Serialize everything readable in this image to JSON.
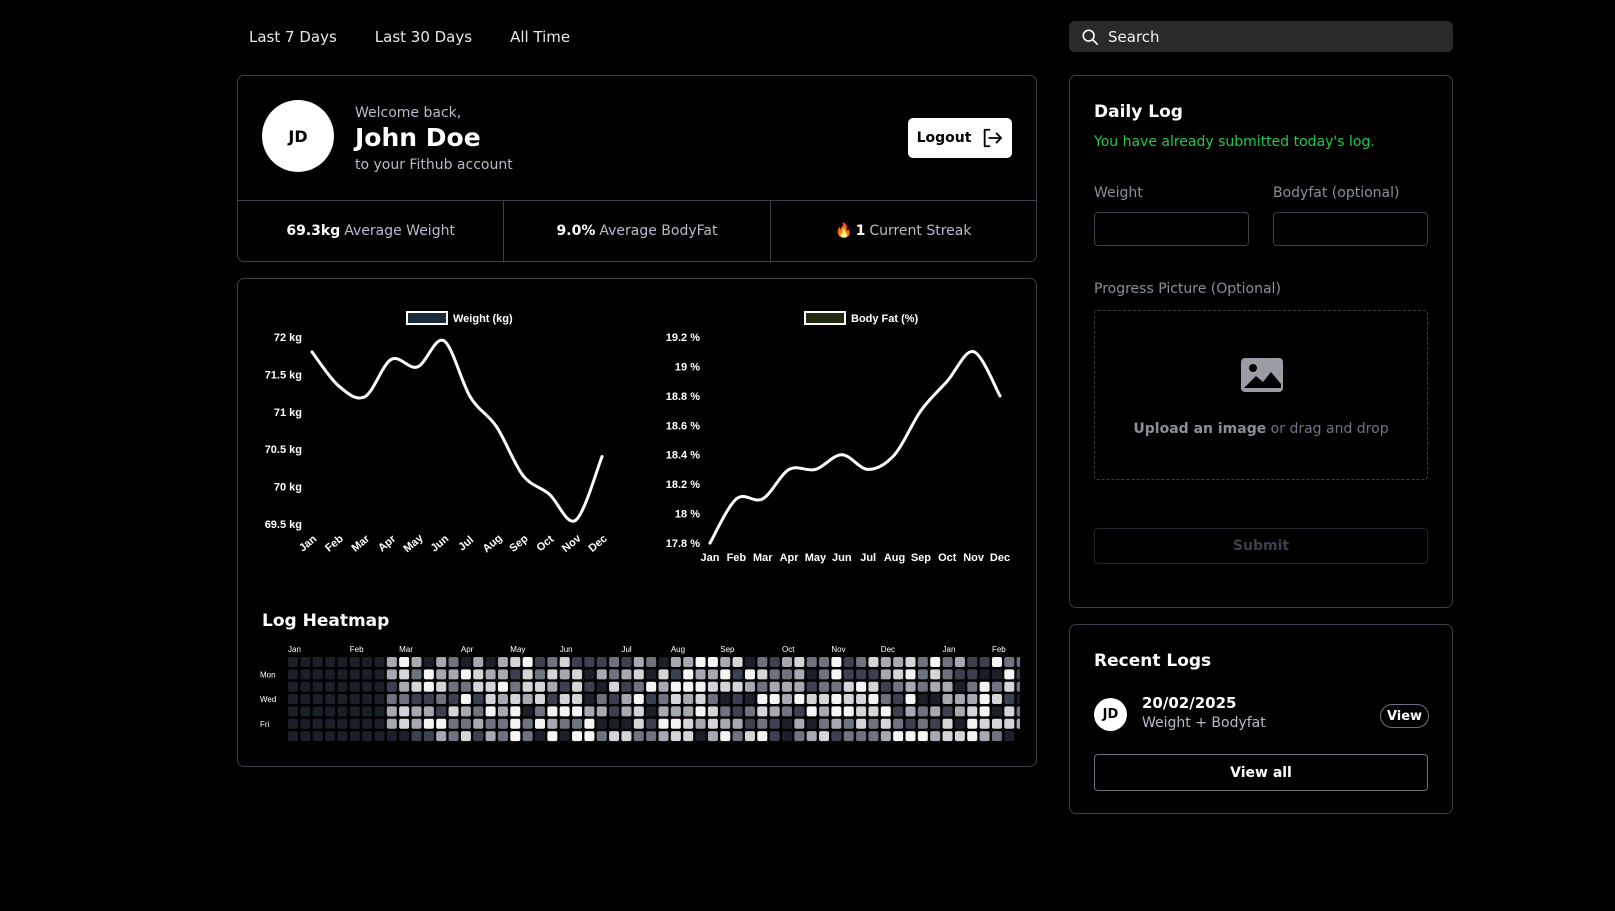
{
  "tabs": [
    "Last 7 Days",
    "Last 30 Days",
    "All Time"
  ],
  "search": {
    "placeholder": "Search"
  },
  "welcome": {
    "avatar_initials": "JD",
    "greeting": "Welcome back,",
    "name": "John Doe",
    "subtitle": "to your Fithub account",
    "logout_label": "Logout"
  },
  "stats": [
    {
      "value": "69.3kg",
      "label": "Average Weight"
    },
    {
      "value": "9.0%",
      "label": "Average BodyFat"
    },
    {
      "value": "1",
      "label": "Current Streak",
      "icon": "flame-icon"
    }
  ],
  "chart_data": [
    {
      "type": "line",
      "legend": "Weight (kg)",
      "categories": [
        "Jan",
        "Feb",
        "Mar",
        "Apr",
        "May",
        "Jun",
        "Jul",
        "Aug",
        "Sep",
        "Oct",
        "Nov",
        "Dec"
      ],
      "values": [
        71.8,
        71.35,
        71.2,
        71.7,
        71.6,
        71.95,
        71.2,
        70.8,
        70.15,
        69.9,
        69.55,
        70.4
      ],
      "yticks": [
        "72 kg",
        "71.5 kg",
        "71 kg",
        "70.5 kg",
        "70 kg",
        "69.5 kg"
      ],
      "ylim": [
        69.5,
        72
      ],
      "color": "#ffffff",
      "legend_color": "#1a2a3a"
    },
    {
      "type": "line",
      "legend": "Body Fat (%)",
      "categories": [
        "Jan",
        "Feb",
        "Mar",
        "Apr",
        "May",
        "Jun",
        "Jul",
        "Aug",
        "Sep",
        "Oct",
        "Nov",
        "Dec"
      ],
      "values": [
        17.8,
        18.1,
        18.1,
        18.3,
        18.3,
        18.4,
        18.3,
        18.4,
        18.7,
        18.9,
        19.1,
        18.8
      ],
      "yticks": [
        "19.2 %",
        "19 %",
        "18.8 %",
        "18.6 %",
        "18.4 %",
        "18.2 %",
        "18 %",
        "17.8 %"
      ],
      "ylim": [
        17.8,
        19.2
      ],
      "color": "#ffffff",
      "legend_color": "#1f2a10"
    }
  ],
  "heatmap": {
    "title": "Log Heatmap",
    "months": [
      "Jan",
      "Feb",
      "Mar",
      "Apr",
      "May",
      "Jun",
      "Jul",
      "Aug",
      "Sep",
      "Oct",
      "Nov",
      "Dec",
      "Jan",
      "Feb"
    ],
    "days": [
      "Mon",
      "Wed",
      "Fri"
    ],
    "weeks": 60,
    "empty_weeks": 8,
    "palette": [
      "#1a1f29",
      "#3b4150",
      "#6e7380",
      "#a6a9b1",
      "#d4d5d9",
      "#f5f5f5"
    ]
  },
  "daily_log": {
    "title": "Daily Log",
    "message": "You have already submitted today's log.",
    "weight_label": "Weight",
    "bodyfat_label": "Bodyfat (optional)",
    "picture_label": "Progress Picture (Optional)",
    "upload_strong": "Upload an image",
    "upload_rest": " or drag and drop",
    "submit_label": "Submit"
  },
  "recent_logs": {
    "title": "Recent Logs",
    "items": [
      {
        "initials": "JD",
        "date": "20/02/2025",
        "type": "Weight + Bodyfat",
        "view_label": "View"
      }
    ],
    "view_all_label": "View all"
  }
}
